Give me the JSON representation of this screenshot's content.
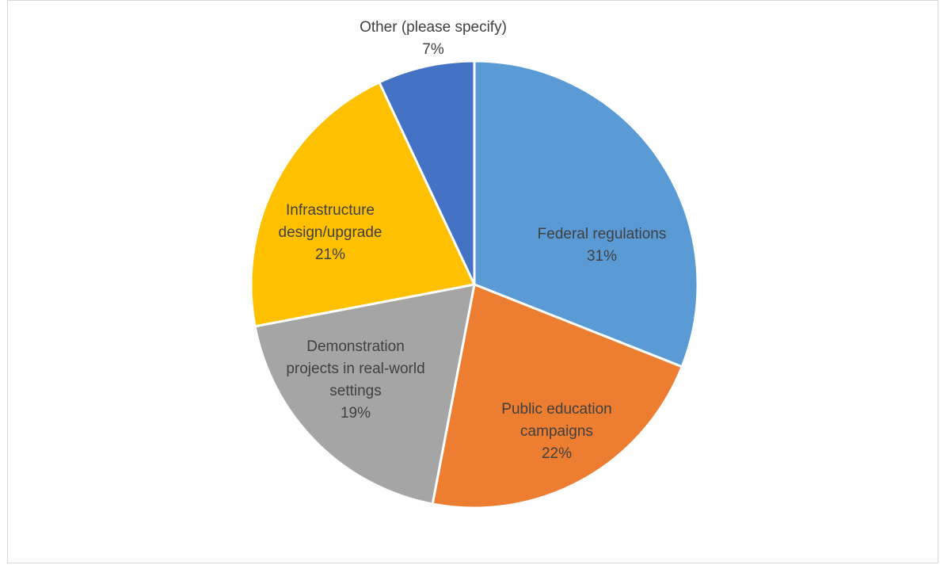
{
  "chart_data": {
    "type": "pie",
    "slices": [
      {
        "label": "Federal regulations",
        "display_lines": [
          "Federal regulations"
        ],
        "percent_label": "31%",
        "value": 31,
        "color": "#5B9BD5"
      },
      {
        "label": "Public education campaigns",
        "display_lines": [
          "Public education",
          "campaigns"
        ],
        "percent_label": "22%",
        "value": 22,
        "color": "#ED7D31"
      },
      {
        "label": "Demonstration projects in real-world settings",
        "display_lines": [
          "Demonstration",
          "projects in real-world",
          "settings"
        ],
        "percent_label": "19%",
        "value": 19,
        "color": "#A5A5A5"
      },
      {
        "label": "Infrastructure design/upgrade",
        "display_lines": [
          "Infrastructure",
          "design/upgrade"
        ],
        "percent_label": "21%",
        "value": 21,
        "color": "#FFC000"
      },
      {
        "label": "Other (please specify)",
        "display_lines": [
          "Other (please specify)"
        ],
        "percent_label": "7%",
        "value": 7,
        "color": "#4472C4"
      }
    ],
    "start": "12 o'clock",
    "direction": "clockwise",
    "legend": "none",
    "data_labels": "category name and percentage"
  }
}
